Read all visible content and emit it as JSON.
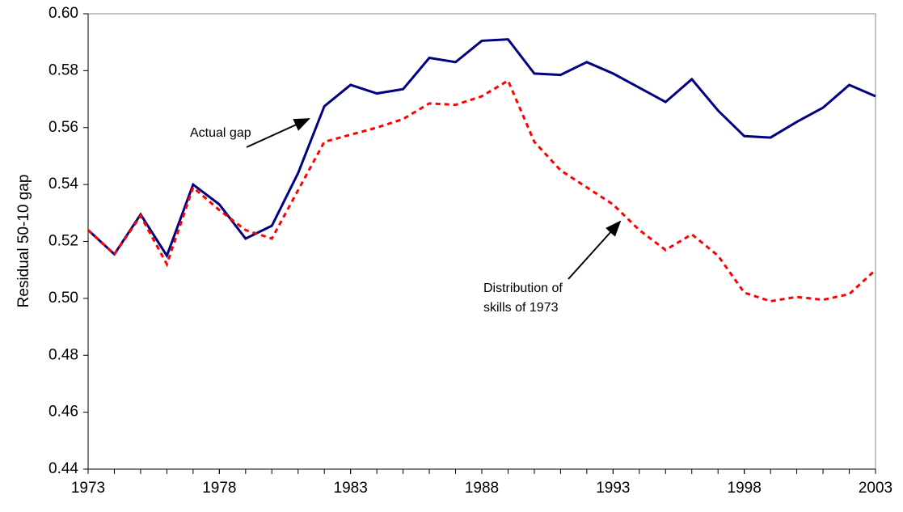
{
  "chart_data": {
    "type": "line",
    "ylabel": "Residual 50-10 gap",
    "x": [
      1973,
      1974,
      1975,
      1976,
      1977,
      1978,
      1979,
      1980,
      1981,
      1982,
      1983,
      1984,
      1985,
      1986,
      1987,
      1988,
      1989,
      1990,
      1991,
      1992,
      1993,
      1994,
      1995,
      1996,
      1997,
      1998,
      1999,
      2000,
      2001,
      2002,
      2003
    ],
    "xlim": [
      1973,
      2003
    ],
    "xticks": [
      1973,
      1978,
      1983,
      1988,
      1993,
      1998,
      2003
    ],
    "ylim": [
      0.44,
      0.6
    ],
    "yticks": [
      0.44,
      0.46,
      0.48,
      {
        "value": 0.5,
        "label": "0.50"
      },
      0.52,
      0.54,
      0.56,
      0.58,
      {
        "value": 0.6,
        "label": "0.60"
      }
    ],
    "series": [
      {
        "name": "Actual gap",
        "color": "#000080",
        "dash": false,
        "values": [
          0.524,
          0.5155,
          0.5295,
          0.515,
          0.54,
          0.533,
          0.521,
          0.5255,
          0.544,
          0.5675,
          0.575,
          0.572,
          0.5735,
          0.5845,
          0.583,
          0.5905,
          0.591,
          0.579,
          0.5785,
          0.583,
          0.579,
          0.574,
          0.569,
          0.577,
          0.566,
          0.557,
          0.5565,
          0.562,
          0.567,
          0.575,
          0.571
        ]
      },
      {
        "name": "Distribution of skills of 1973",
        "color": "#ff0000",
        "dash": true,
        "values": [
          0.524,
          0.5155,
          0.529,
          0.512,
          0.539,
          0.531,
          0.524,
          0.521,
          0.538,
          0.555,
          0.5575,
          0.56,
          0.563,
          0.5685,
          0.568,
          0.571,
          0.5765,
          0.555,
          0.545,
          0.539,
          0.533,
          0.524,
          0.517,
          0.5225,
          0.515,
          0.502,
          0.499,
          0.5005,
          0.4995,
          0.5015,
          0.51
        ]
      }
    ],
    "annotations": [
      {
        "lines": [
          "Actual gap"
        ]
      },
      {
        "lines": [
          "Distribution of",
          "skills of 1973"
        ]
      }
    ]
  }
}
